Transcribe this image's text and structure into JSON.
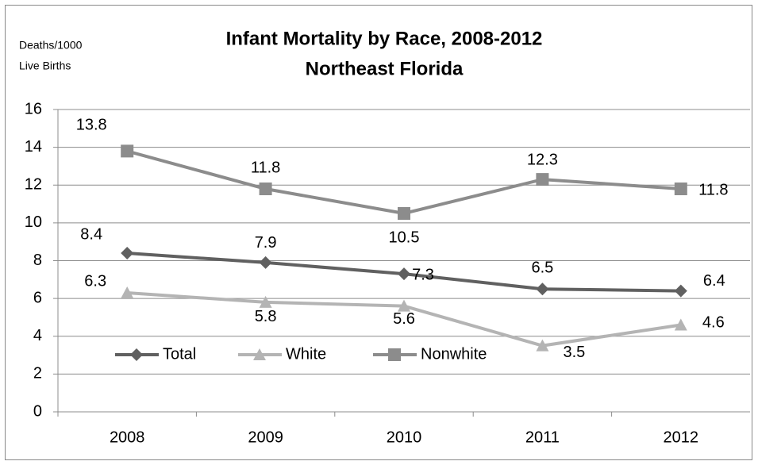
{
  "chart_data": {
    "type": "line",
    "title": "Infant Mortality by Race, 2008-2012",
    "subtitle": "Northeast Florida",
    "ylabel": [
      "Deaths/1000",
      "Live Births"
    ],
    "categories": [
      "2008",
      "2009",
      "2010",
      "2011",
      "2012"
    ],
    "series": [
      {
        "name": "Total",
        "color": "#606060",
        "marker": "diamond",
        "values": [
          8.4,
          7.9,
          7.3,
          6.5,
          6.4
        ]
      },
      {
        "name": "White",
        "color": "#b4b4b4",
        "marker": "triangle",
        "values": [
          6.3,
          5.8,
          5.6,
          3.5,
          4.6
        ]
      },
      {
        "name": "Nonwhite",
        "color": "#8c8c8c",
        "marker": "square",
        "values": [
          13.8,
          11.8,
          10.5,
          12.3,
          11.8
        ]
      }
    ],
    "ylim": [
      0,
      16
    ],
    "yticks": [
      0,
      2,
      4,
      6,
      8,
      10,
      12,
      14,
      16
    ],
    "grid": true,
    "legend": "lower left"
  }
}
